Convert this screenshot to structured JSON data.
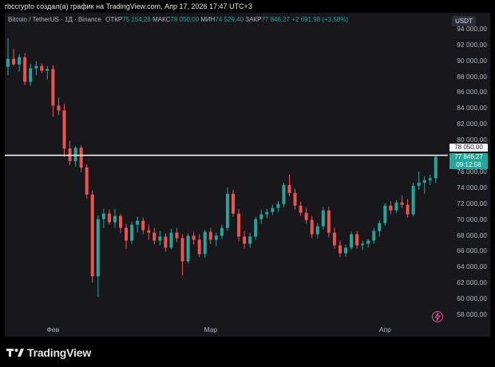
{
  "caption": "rbccrypto создал(а) график на TradingView.com, Апр 17, 2026 17:47 UTC+3",
  "legend": {
    "symbol": "Bitcoin / TetherUS · 1Д · Binance",
    "open_label": "ОТКР",
    "open": "75 154,28",
    "high_label": "МАКС",
    "high": "78 050,00",
    "low_label": "МИН",
    "low": "74 529,40",
    "close_label": "ЗАКР",
    "close": "77 846,27",
    "change": "+2 691,98 (+3,58%)"
  },
  "currency_button": "USDT",
  "price_ticks": [
    "94 000,00",
    "92 000,00",
    "90 000,00",
    "88 000,00",
    "86 000,00",
    "84 000,00",
    "82 000,00",
    "80 000,00",
    "76 000,00",
    "74 000,00",
    "72 000,00",
    "70 000,00",
    "68 000,00",
    "66 000,00",
    "64 000,00",
    "62 000,00",
    "60 000,00",
    "58 000,00"
  ],
  "time_labels": [
    {
      "label": "Фев",
      "index": 8
    },
    {
      "label": "Мар",
      "index": 36
    },
    {
      "label": "Апр",
      "index": 67
    }
  ],
  "horizontal_line_label": "78 050,00",
  "last_price": {
    "price": "77 846,27",
    "countdown": "09:12:58"
  },
  "logo_text": "TradingView",
  "colors": {
    "up": "#26a69a",
    "down": "#ef5350",
    "background": "#17171c",
    "hline": "#ffffff"
  },
  "chart_data": {
    "type": "candlestick",
    "symbol": "BTCUSDT",
    "ylim": [
      57000,
      96000
    ],
    "hline": 78050,
    "candles": [
      {
        "o": 89200,
        "h": 92800,
        "l": 88100,
        "c": 90200
      },
      {
        "o": 90200,
        "h": 91500,
        "l": 89300,
        "c": 89500
      },
      {
        "o": 89500,
        "h": 90800,
        "l": 88600,
        "c": 90400
      },
      {
        "o": 90400,
        "h": 90900,
        "l": 86900,
        "c": 87300
      },
      {
        "o": 87300,
        "h": 89600,
        "l": 86800,
        "c": 89000
      },
      {
        "o": 89000,
        "h": 89900,
        "l": 88100,
        "c": 89300
      },
      {
        "o": 89300,
        "h": 89600,
        "l": 88400,
        "c": 88700
      },
      {
        "o": 88700,
        "h": 89300,
        "l": 87600,
        "c": 88900
      },
      {
        "o": 88900,
        "h": 89400,
        "l": 82900,
        "c": 84300
      },
      {
        "o": 84300,
        "h": 85300,
        "l": 83100,
        "c": 83700
      },
      {
        "o": 83700,
        "h": 84500,
        "l": 77800,
        "c": 78900
      },
      {
        "o": 78900,
        "h": 79900,
        "l": 76800,
        "c": 77300
      },
      {
        "o": 77300,
        "h": 79200,
        "l": 76600,
        "c": 79000
      },
      {
        "o": 79000,
        "h": 79300,
        "l": 75900,
        "c": 76500
      },
      {
        "o": 76500,
        "h": 76900,
        "l": 72600,
        "c": 73100
      },
      {
        "o": 73100,
        "h": 73600,
        "l": 62000,
        "c": 62800
      },
      {
        "o": 62800,
        "h": 70500,
        "l": 60200,
        "c": 70000
      },
      {
        "o": 70000,
        "h": 71300,
        "l": 68900,
        "c": 70700
      },
      {
        "o": 70700,
        "h": 71200,
        "l": 69300,
        "c": 69600
      },
      {
        "o": 69600,
        "h": 71300,
        "l": 68900,
        "c": 70400
      },
      {
        "o": 70400,
        "h": 70700,
        "l": 68200,
        "c": 68900
      },
      {
        "o": 68900,
        "h": 69400,
        "l": 66300,
        "c": 67300
      },
      {
        "o": 67300,
        "h": 69700,
        "l": 66900,
        "c": 69300
      },
      {
        "o": 69300,
        "h": 70300,
        "l": 68300,
        "c": 69800
      },
      {
        "o": 69800,
        "h": 70200,
        "l": 68100,
        "c": 68600
      },
      {
        "o": 68600,
        "h": 69300,
        "l": 67400,
        "c": 68300
      },
      {
        "o": 68300,
        "h": 68900,
        "l": 66800,
        "c": 67300
      },
      {
        "o": 67300,
        "h": 68500,
        "l": 66700,
        "c": 67800
      },
      {
        "o": 67800,
        "h": 68200,
        "l": 65900,
        "c": 66400
      },
      {
        "o": 66400,
        "h": 68800,
        "l": 66200,
        "c": 68300
      },
      {
        "o": 68300,
        "h": 68900,
        "l": 67100,
        "c": 67600
      },
      {
        "o": 67600,
        "h": 68100,
        "l": 62900,
        "c": 64700
      },
      {
        "o": 64700,
        "h": 68200,
        "l": 64400,
        "c": 67900
      },
      {
        "o": 67900,
        "h": 68400,
        "l": 66800,
        "c": 67400
      },
      {
        "o": 67400,
        "h": 68100,
        "l": 65200,
        "c": 65600
      },
      {
        "o": 65600,
        "h": 68700,
        "l": 65100,
        "c": 68400
      },
      {
        "o": 68400,
        "h": 68900,
        "l": 66900,
        "c": 67400
      },
      {
        "o": 67400,
        "h": 68300,
        "l": 66600,
        "c": 67900
      },
      {
        "o": 67900,
        "h": 69300,
        "l": 67500,
        "c": 68900
      },
      {
        "o": 68900,
        "h": 74000,
        "l": 68500,
        "c": 73200
      },
      {
        "o": 73200,
        "h": 73700,
        "l": 70300,
        "c": 70700
      },
      {
        "o": 70700,
        "h": 71300,
        "l": 67200,
        "c": 67800
      },
      {
        "o": 67800,
        "h": 68500,
        "l": 66300,
        "c": 66900
      },
      {
        "o": 66900,
        "h": 68300,
        "l": 66400,
        "c": 67800
      },
      {
        "o": 67800,
        "h": 70300,
        "l": 67400,
        "c": 70000
      },
      {
        "o": 70000,
        "h": 71200,
        "l": 69400,
        "c": 70600
      },
      {
        "o": 70600,
        "h": 71300,
        "l": 70100,
        "c": 70900
      },
      {
        "o": 70900,
        "h": 71800,
        "l": 70500,
        "c": 71400
      },
      {
        "o": 71400,
        "h": 72300,
        "l": 70900,
        "c": 71900
      },
      {
        "o": 71900,
        "h": 74600,
        "l": 71500,
        "c": 74300
      },
      {
        "o": 74300,
        "h": 75600,
        "l": 72900,
        "c": 73300
      },
      {
        "o": 73300,
        "h": 73800,
        "l": 71200,
        "c": 71700
      },
      {
        "o": 71700,
        "h": 72200,
        "l": 70400,
        "c": 70800
      },
      {
        "o": 70800,
        "h": 71400,
        "l": 69400,
        "c": 69900
      },
      {
        "o": 69900,
        "h": 70400,
        "l": 67600,
        "c": 68100
      },
      {
        "o": 68100,
        "h": 69500,
        "l": 67600,
        "c": 69100
      },
      {
        "o": 69100,
        "h": 71500,
        "l": 68700,
        "c": 71100
      },
      {
        "o": 71100,
        "h": 71600,
        "l": 67700,
        "c": 68300
      },
      {
        "o": 68300,
        "h": 68900,
        "l": 66300,
        "c": 66700
      },
      {
        "o": 66700,
        "h": 67300,
        "l": 65200,
        "c": 65700
      },
      {
        "o": 65700,
        "h": 66800,
        "l": 65300,
        "c": 66400
      },
      {
        "o": 66400,
        "h": 68400,
        "l": 66100,
        "c": 68100
      },
      {
        "o": 68100,
        "h": 68500,
        "l": 66300,
        "c": 66700
      },
      {
        "o": 66700,
        "h": 67300,
        "l": 66100,
        "c": 66900
      },
      {
        "o": 66900,
        "h": 67500,
        "l": 66400,
        "c": 67300
      },
      {
        "o": 67300,
        "h": 68900,
        "l": 66900,
        "c": 68500
      },
      {
        "o": 68500,
        "h": 69800,
        "l": 67800,
        "c": 69500
      },
      {
        "o": 69500,
        "h": 72000,
        "l": 69200,
        "c": 71700
      },
      {
        "o": 71700,
        "h": 72300,
        "l": 70600,
        "c": 71100
      },
      {
        "o": 71100,
        "h": 72400,
        "l": 70800,
        "c": 72100
      },
      {
        "o": 72100,
        "h": 73000,
        "l": 71400,
        "c": 71800
      },
      {
        "o": 71800,
        "h": 72500,
        "l": 70200,
        "c": 70600
      },
      {
        "o": 70600,
        "h": 74600,
        "l": 70400,
        "c": 74200
      },
      {
        "o": 74200,
        "h": 76000,
        "l": 73700,
        "c": 74600
      },
      {
        "o": 74600,
        "h": 75400,
        "l": 73200,
        "c": 74900
      },
      {
        "o": 74900,
        "h": 75600,
        "l": 74300,
        "c": 75154
      },
      {
        "o": 75154,
        "h": 78050,
        "l": 74529,
        "c": 77846
      }
    ]
  }
}
